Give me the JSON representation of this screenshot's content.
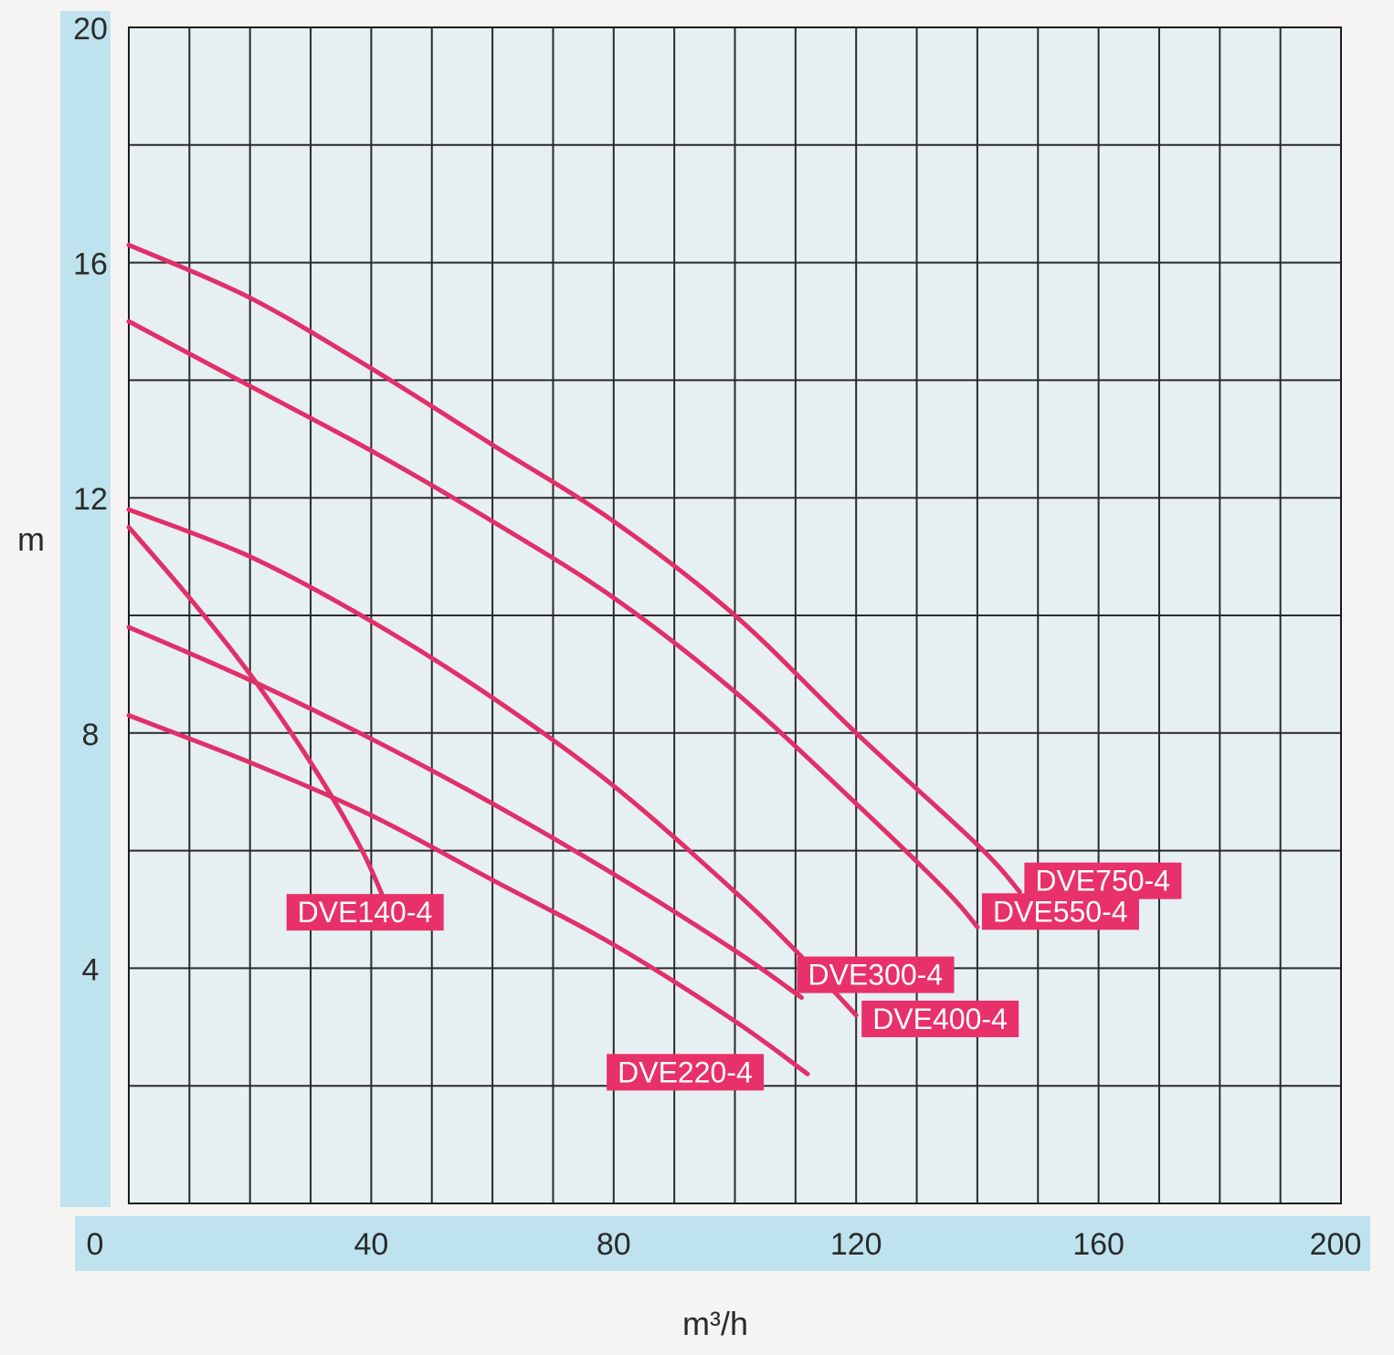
{
  "chart_data": {
    "type": "line",
    "xlabel": "m³/h",
    "ylabel": "m",
    "xlim": [
      0,
      200
    ],
    "ylim": [
      0,
      20
    ],
    "x_ticks": [
      0,
      40,
      80,
      120,
      160,
      200
    ],
    "y_ticks": [
      4,
      8,
      12,
      16,
      20
    ],
    "grid": true,
    "grid_x_step": 10,
    "grid_y_step": 2,
    "line_color": "#e0306a",
    "label_bg_color": "#e8306a",
    "plot_bg_color": "#e6f0f3",
    "axis_band_color": "#bfe3ee",
    "series": [
      {
        "name": "DVE750-4",
        "x": [
          0,
          20,
          40,
          60,
          80,
          100,
          120,
          140,
          147
        ],
        "y": [
          16.3,
          15.4,
          14.2,
          12.9,
          11.6,
          10.0,
          8.0,
          6.1,
          5.3
        ]
      },
      {
        "name": "DVE550-4",
        "x": [
          0,
          20,
          40,
          60,
          80,
          100,
          120,
          135,
          140
        ],
        "y": [
          15.0,
          13.9,
          12.8,
          11.6,
          10.3,
          8.7,
          6.8,
          5.3,
          4.7
        ]
      },
      {
        "name": "DVE400-4",
        "x": [
          0,
          20,
          40,
          60,
          80,
          100,
          110,
          120
        ],
        "y": [
          11.8,
          11.0,
          9.9,
          8.6,
          7.1,
          5.3,
          4.3,
          3.2
        ]
      },
      {
        "name": "DVE300-4",
        "x": [
          0,
          20,
          40,
          60,
          80,
          100,
          111
        ],
        "y": [
          9.8,
          8.9,
          7.9,
          6.8,
          5.6,
          4.3,
          3.5
        ]
      },
      {
        "name": "DVE220-4",
        "x": [
          0,
          20,
          40,
          60,
          80,
          100,
          112
        ],
        "y": [
          8.3,
          7.5,
          6.6,
          5.5,
          4.4,
          3.1,
          2.2
        ]
      },
      {
        "name": "DVE140-4",
        "x": [
          0,
          10,
          20,
          30,
          38,
          42
        ],
        "y": [
          11.5,
          10.3,
          9.0,
          7.5,
          6.1,
          5.2
        ]
      }
    ]
  }
}
